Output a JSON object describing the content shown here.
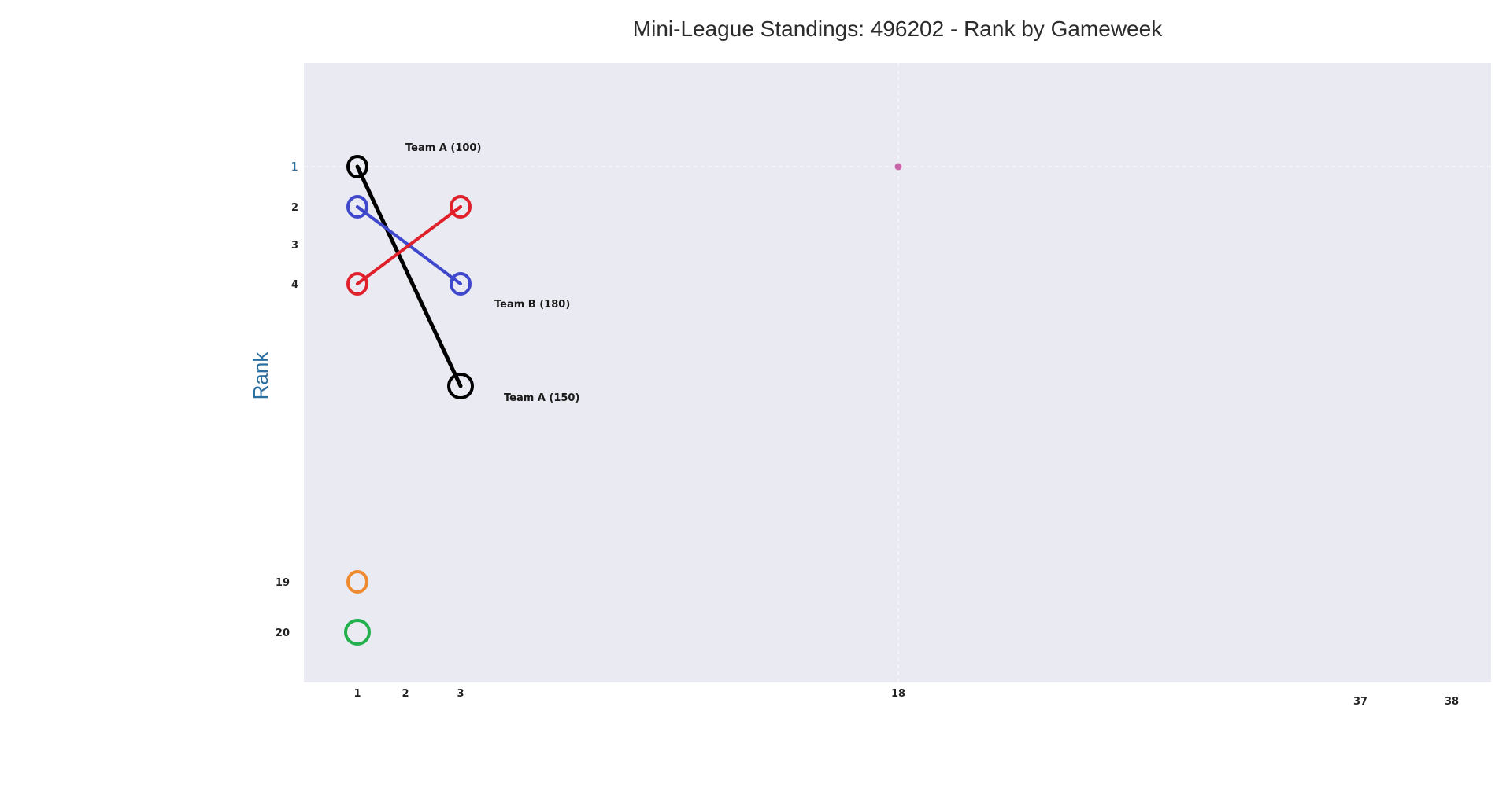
{
  "chart_data": {
    "type": "line",
    "title": "Mini-League Standings: 496202 - Rank by Gameweek",
    "xlabel": "",
    "ylabel": "Rank",
    "x_ticks": [
      "1",
      "2",
      "3",
      "18",
      "37",
      "38"
    ],
    "y_ticks": [
      "1",
      "2",
      "3",
      "4",
      "19",
      "20"
    ],
    "grid": true,
    "colors": {
      "background": "#eaeaf2",
      "grid": "#ffffff",
      "black": "#000000",
      "blue": "#3f48cc",
      "red": "#e0202b",
      "orange": "#f08a30",
      "green": "#22b14c",
      "pink": "#cc66aa",
      "ylabel": "#2a6fa0"
    },
    "series": [
      {
        "color_key": "black",
        "points": [
          [
            1,
            1
          ],
          [
            3,
            6.5
          ]
        ]
      },
      {
        "color_key": "blue",
        "points": [
          [
            1,
            2
          ],
          [
            3,
            4
          ]
        ]
      },
      {
        "color_key": "red",
        "points": [
          [
            1,
            4
          ],
          [
            3,
            2
          ]
        ]
      },
      {
        "color_key": "orange",
        "points": [
          [
            1,
            19
          ]
        ]
      },
      {
        "color_key": "green",
        "points": [
          [
            1,
            20
          ]
        ]
      },
      {
        "color_key": "pink",
        "points": [
          [
            18,
            1
          ]
        ]
      }
    ],
    "annotations": [
      {
        "text": "Team A (100)",
        "x": 2,
        "y": 1
      },
      {
        "text": "Team B (180)",
        "x": 4,
        "y": 4
      },
      {
        "text": "Team A (150)",
        "x": 4,
        "y": 6.5
      }
    ]
  }
}
